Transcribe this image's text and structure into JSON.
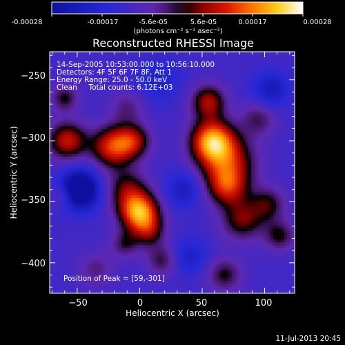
{
  "colorbar": {
    "ticks": [
      "-0.00028",
      "-0.00017",
      "-5.6e-05",
      "5.6e-05",
      "0.00017",
      "0.00028"
    ],
    "unit_line": "(photons cm⁻² s⁻¹ asec⁻²)",
    "range": [
      -0.00028,
      0.00028
    ]
  },
  "title": "Reconstructed RHESSI Image",
  "info": {
    "line1": "14-Sep-2005 10:53:00.000 to 10:56:10.000",
    "line2": "Detectors: 4F 5F 6F 7F 8F, Att 1",
    "line3": "Energy Range: 25.0 - 50.0 keV",
    "line4": "Clean     Total counts: 6.12E+03"
  },
  "peak_label": "Position of Peak = [59,-301]",
  "x_axis": {
    "label": "Heliocentric X (arcsec)",
    "range": [
      -72,
      124
    ],
    "ticks": [
      -50,
      0,
      50,
      100
    ],
    "tick_labels": [
      "−50",
      "0",
      "50",
      "100"
    ]
  },
  "y_axis": {
    "label": "Heliocentric Y (arcsec)",
    "range": [
      -425,
      -227
    ],
    "ticks": [
      -250,
      -300,
      -350,
      -400
    ],
    "tick_labels": [
      "−250",
      "−300",
      "−350",
      "−400"
    ]
  },
  "footer_timestamp": "11-Jul-2013 20:45",
  "chart_data": {
    "type": "heatmap",
    "title": "Reconstructed RHESSI Image",
    "xlabel": "Heliocentric X (arcsec)",
    "ylabel": "Heliocentric Y (arcsec)",
    "xlim": [
      -72,
      124
    ],
    "ylim": [
      -425,
      -227
    ],
    "value_range": [
      -0.00028,
      0.00028
    ],
    "colormap": "blue-purple-red-yellow-white",
    "peak": [
      59,
      -301
    ],
    "sources": [
      {
        "x": 58,
        "y": -300,
        "amp": 0.00028,
        "sigma": 12
      },
      {
        "x": 70,
        "y": -318,
        "amp": 0.0002,
        "sigma": 16
      },
      {
        "x": 55,
        "y": -268,
        "amp": 0.00018,
        "sigma": 10
      },
      {
        "x": 70,
        "y": -338,
        "amp": 0.00016,
        "sigma": 11
      },
      {
        "x": 82,
        "y": -365,
        "amp": 0.00015,
        "sigma": 12
      },
      {
        "x": 103,
        "y": -352,
        "amp": 0.00012,
        "sigma": 10
      },
      {
        "x": 112,
        "y": -378,
        "amp": 0.00012,
        "sigma": 9
      },
      {
        "x": 68,
        "y": -410,
        "amp": 0.00012,
        "sigma": 10
      },
      {
        "x": 95,
        "y": -282,
        "amp": 0.0001,
        "sigma": 10
      },
      {
        "x": 0,
        "y": -359,
        "amp": 0.0003,
        "sigma": 11
      },
      {
        "x": -10,
        "y": -340,
        "amp": 0.00014,
        "sigma": 12
      },
      {
        "x": 8,
        "y": -375,
        "amp": 0.00012,
        "sigma": 9
      },
      {
        "x": -12,
        "y": -385,
        "amp": 0.0001,
        "sigma": 8
      },
      {
        "x": -22,
        "y": -305,
        "amp": 0.00022,
        "sigma": 12
      },
      {
        "x": -5,
        "y": -300,
        "amp": 0.00016,
        "sigma": 10
      },
      {
        "x": -58,
        "y": -300,
        "amp": 0.0002,
        "sigma": 11
      },
      {
        "x": -60,
        "y": -265,
        "amp": 0.00012,
        "sigma": 8
      },
      {
        "x": -62,
        "y": -345,
        "amp": 9e-05,
        "sigma": 7
      },
      {
        "x": -10,
        "y": -272,
        "amp": 8e-05,
        "sigma": 10
      },
      {
        "x": 18,
        "y": -398,
        "amp": 0.00011,
        "sigma": 9
      },
      {
        "x": -35,
        "y": -405,
        "amp": 8e-05,
        "sigma": 10
      },
      {
        "x": -48,
        "y": -340,
        "amp": -0.00028,
        "sigma": 11
      },
      {
        "x": 105,
        "y": -258,
        "amp": -0.00012,
        "sigma": 10
      },
      {
        "x": 35,
        "y": -340,
        "amp": -0.00011,
        "sigma": 10
      },
      {
        "x": 15,
        "y": -250,
        "amp": -8e-05,
        "sigma": 12
      },
      {
        "x": 40,
        "y": -395,
        "amp": -9e-05,
        "sigma": 10
      }
    ]
  }
}
